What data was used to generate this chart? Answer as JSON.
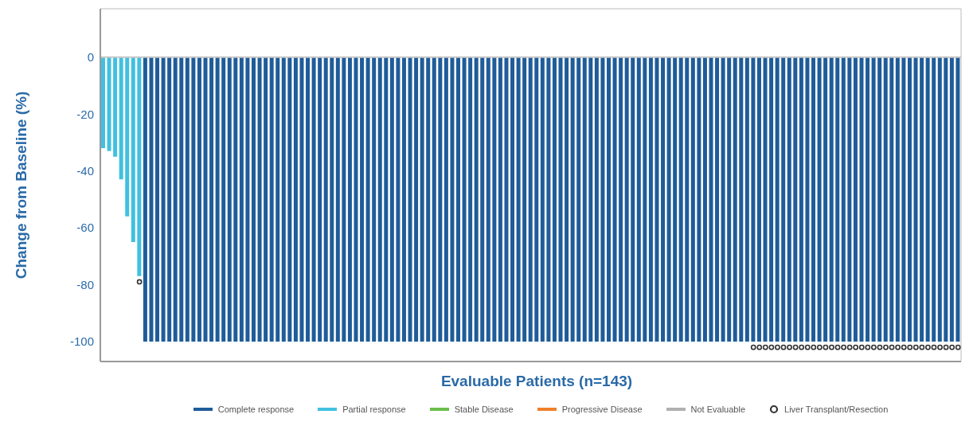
{
  "chart_data": {
    "type": "bar",
    "stacked": true,
    "ylabel": "Change from Baseline (%)",
    "xlabel": "Evaluable Patients (n=143)",
    "categories": [
      null,
      null,
      null,
      null,
      null,
      null,
      null,
      null,
      null,
      null,
      null,
      null,
      null,
      null,
      null,
      null,
      null,
      null,
      null,
      null,
      null,
      null,
      null,
      null,
      null,
      null,
      null,
      null,
      null,
      null,
      null,
      null,
      null,
      null,
      null,
      null,
      null,
      null,
      null,
      null,
      null,
      null,
      null,
      null,
      null,
      null,
      null,
      null,
      null,
      null,
      null,
      null,
      null,
      null,
      null,
      null,
      null,
      null,
      null,
      null,
      null,
      null,
      null,
      null,
      null,
      null,
      null,
      null,
      null,
      null,
      null,
      null,
      null,
      null,
      null,
      null,
      null,
      null,
      null,
      null,
      null,
      null,
      null,
      null,
      null,
      null,
      null,
      null,
      null,
      null,
      null,
      null,
      null,
      null,
      null,
      null,
      null,
      null,
      null,
      null,
      null,
      null,
      null,
      null,
      null,
      null,
      null,
      null,
      null,
      null,
      null,
      null,
      null,
      null,
      null,
      null,
      null,
      null,
      null,
      null,
      null,
      null,
      null,
      null,
      null,
      null,
      null,
      null,
      null,
      null,
      null,
      null,
      null,
      null,
      null,
      null,
      null,
      null,
      null,
      null,
      null,
      null,
      null
    ],
    "series": [
      {
        "name": "Complete response",
        "color": "#1f5c99",
        "values": [
          null,
          null,
          null,
          null,
          null,
          null,
          null,
          -100,
          -100,
          -100,
          -100,
          -100,
          -100,
          -100,
          -100,
          -100,
          -100,
          -100,
          -100,
          -100,
          -100,
          -100,
          -100,
          -100,
          -100,
          -100,
          -100,
          -100,
          -100,
          -100,
          -100,
          -100,
          -100,
          -100,
          -100,
          -100,
          -100,
          -100,
          -100,
          -100,
          -100,
          -100,
          -100,
          -100,
          -100,
          -100,
          -100,
          -100,
          -100,
          -100,
          -100,
          -100,
          -100,
          -100,
          -100,
          -100,
          -100,
          -100,
          -100,
          -100,
          -100,
          -100,
          -100,
          -100,
          -100,
          -100,
          -100,
          -100,
          -100,
          -100,
          -100,
          -100,
          -100,
          -100,
          -100,
          -100,
          -100,
          -100,
          -100,
          -100,
          -100,
          -100,
          -100,
          -100,
          -100,
          -100,
          -100,
          -100,
          -100,
          -100,
          -100,
          -100,
          -100,
          -100,
          -100,
          -100,
          -100,
          -100,
          -100,
          -100,
          -100,
          -100,
          -100,
          -100,
          -100,
          -100,
          -100,
          -100,
          -100,
          -100,
          -100,
          -100,
          -100,
          -100,
          -100,
          -100,
          -100,
          -100,
          -100,
          -100,
          -100,
          -100,
          -100,
          -100,
          -100,
          -100,
          -100,
          -100,
          -100,
          -100,
          -100,
          -100,
          -100,
          -100,
          -100,
          -100,
          -100,
          -100,
          -100,
          -100,
          -100,
          -100,
          -100
        ]
      },
      {
        "name": "Partial response",
        "color": "#41c0e0",
        "values": [
          -32,
          -33,
          -35,
          -43,
          -56,
          -65,
          -77,
          null,
          null,
          null,
          null,
          null,
          null,
          null,
          null,
          null,
          null,
          null,
          null,
          null,
          null,
          null,
          null,
          null,
          null,
          null,
          null,
          null,
          null,
          null,
          null,
          null,
          null,
          null,
          null,
          null,
          null,
          null,
          null,
          null,
          null,
          null,
          null,
          null,
          null,
          null,
          null,
          null,
          null,
          null,
          null,
          null,
          null,
          null,
          null,
          null,
          null,
          null,
          null,
          null,
          null,
          null,
          null,
          null,
          null,
          null,
          null,
          null,
          null,
          null,
          null,
          null,
          null,
          null,
          null,
          null,
          null,
          null,
          null,
          null,
          null,
          null,
          null,
          null,
          null,
          null,
          null,
          null,
          null,
          null,
          null,
          null,
          null,
          null,
          null,
          null,
          null,
          null,
          null,
          null,
          null,
          null,
          null,
          null,
          null,
          null,
          null,
          null,
          null,
          null,
          null,
          null,
          null,
          null,
          null,
          null,
          null,
          null,
          null,
          null,
          null,
          null,
          null,
          null,
          null,
          null,
          null,
          null,
          null,
          null,
          null,
          null,
          null,
          null,
          null,
          null,
          null,
          null,
          null,
          null,
          null,
          null,
          null
        ]
      },
      {
        "name": "Stable Disease",
        "color": "#6abf4b",
        "values": [
          null,
          null,
          null,
          null,
          null,
          null,
          null,
          null,
          null,
          null,
          null,
          null,
          null,
          null,
          null,
          null,
          null,
          null,
          null,
          null,
          null,
          null,
          null,
          null,
          null,
          null,
          null,
          null,
          null,
          null,
          null,
          null,
          null,
          null,
          null,
          null,
          null,
          null,
          null,
          null,
          null,
          null,
          null,
          null,
          null,
          null,
          null,
          null,
          null,
          null,
          null,
          null,
          null,
          null,
          null,
          null,
          null,
          null,
          null,
          null,
          null,
          null,
          null,
          null,
          null,
          null,
          null,
          null,
          null,
          null,
          null,
          null,
          null,
          null,
          null,
          null,
          null,
          null,
          null,
          null,
          null,
          null,
          null,
          null,
          null,
          null,
          null,
          null,
          null,
          null,
          null,
          null,
          null,
          null,
          null,
          null,
          null,
          null,
          null,
          null,
          null,
          null,
          null,
          null,
          null,
          null,
          null,
          null,
          null,
          null,
          null,
          null,
          null,
          null,
          null,
          null,
          null,
          null,
          null,
          null,
          null,
          null,
          null,
          null,
          null,
          null,
          null,
          null,
          null,
          null,
          null,
          null,
          null,
          null,
          null,
          null,
          null,
          null,
          null,
          null,
          null,
          null,
          null
        ]
      },
      {
        "name": "Progressive Disease",
        "color": "#f0802a",
        "values": [
          null,
          null,
          null,
          null,
          null,
          null,
          null,
          null,
          null,
          null,
          null,
          null,
          null,
          null,
          null,
          null,
          null,
          null,
          null,
          null,
          null,
          null,
          null,
          null,
          null,
          null,
          null,
          null,
          null,
          null,
          null,
          null,
          null,
          null,
          null,
          null,
          null,
          null,
          null,
          null,
          null,
          null,
          null,
          null,
          null,
          null,
          null,
          null,
          null,
          null,
          null,
          null,
          null,
          null,
          null,
          null,
          null,
          null,
          null,
          null,
          null,
          null,
          null,
          null,
          null,
          null,
          null,
          null,
          null,
          null,
          null,
          null,
          null,
          null,
          null,
          null,
          null,
          null,
          null,
          null,
          null,
          null,
          null,
          null,
          null,
          null,
          null,
          null,
          null,
          null,
          null,
          null,
          null,
          null,
          null,
          null,
          null,
          null,
          null,
          null,
          null,
          null,
          null,
          null,
          null,
          null,
          null,
          null,
          null,
          null,
          null,
          null,
          null,
          null,
          null,
          null,
          null,
          null,
          null,
          null,
          null,
          null,
          null,
          null,
          null,
          null,
          null,
          null,
          null,
          null,
          null,
          null,
          null,
          null,
          null,
          null,
          null,
          null,
          null,
          null,
          null,
          null,
          null
        ]
      },
      {
        "name": "Not Evaluable",
        "color": "#b0b0b0",
        "values": [
          null,
          null,
          null,
          null,
          null,
          null,
          null,
          null,
          null,
          null,
          null,
          null,
          null,
          null,
          null,
          null,
          null,
          null,
          null,
          null,
          null,
          null,
          null,
          null,
          null,
          null,
          null,
          null,
          null,
          null,
          null,
          null,
          null,
          null,
          null,
          null,
          null,
          null,
          null,
          null,
          null,
          null,
          null,
          null,
          null,
          null,
          null,
          null,
          null,
          null,
          null,
          null,
          null,
          null,
          null,
          null,
          null,
          null,
          null,
          null,
          null,
          null,
          null,
          null,
          null,
          null,
          null,
          null,
          null,
          null,
          null,
          null,
          null,
          null,
          null,
          null,
          null,
          null,
          null,
          null,
          null,
          null,
          null,
          null,
          null,
          null,
          null,
          null,
          null,
          null,
          null,
          null,
          null,
          null,
          null,
          null,
          null,
          null,
          null,
          null,
          null,
          null,
          null,
          null,
          null,
          null,
          null,
          null,
          null,
          null,
          null,
          null,
          null,
          null,
          null,
          null,
          null,
          null,
          null,
          null,
          null,
          null,
          null,
          null,
          null,
          null,
          null,
          null,
          null,
          null,
          null,
          null,
          null,
          null,
          null,
          null,
          null,
          null,
          null,
          null,
          null,
          null,
          null
        ]
      },
      {
        "name": "Liver Transplant/Resection",
        "type": "scatter",
        "marker": "circle",
        "color": "#333333",
        "values": [
          null,
          null,
          null,
          null,
          null,
          null,
          -79,
          null,
          null,
          null,
          null,
          null,
          null,
          null,
          null,
          null,
          null,
          null,
          null,
          null,
          null,
          null,
          null,
          null,
          null,
          null,
          null,
          null,
          null,
          null,
          null,
          null,
          null,
          null,
          null,
          null,
          null,
          null,
          null,
          null,
          null,
          null,
          null,
          null,
          null,
          null,
          null,
          null,
          null,
          null,
          null,
          null,
          null,
          null,
          null,
          null,
          null,
          null,
          null,
          null,
          null,
          null,
          null,
          null,
          null,
          null,
          null,
          null,
          null,
          null,
          null,
          null,
          null,
          null,
          null,
          null,
          null,
          null,
          null,
          null,
          null,
          null,
          null,
          null,
          null,
          null,
          null,
          null,
          null,
          null,
          null,
          null,
          null,
          null,
          null,
          null,
          null,
          null,
          null,
          null,
          null,
          null,
          null,
          null,
          null,
          null,
          null,
          null,
          -102,
          -102,
          -102,
          -102,
          -102,
          -102,
          -102,
          -102,
          -102,
          -102,
          -102,
          -102,
          -102,
          -102,
          -102,
          -102,
          -102,
          -102,
          -102,
          -102,
          -102,
          -102,
          -102,
          -102,
          -102,
          -102,
          -102,
          -102,
          -102,
          -102,
          -102,
          -102,
          -102,
          -102,
          -102
        ]
      }
    ],
    "ylim": [
      -107,
      17
    ],
    "yticks": [
      -100,
      -80,
      -60,
      -40,
      -20,
      0
    ],
    "ref_lines": [
      {
        "axis": "y",
        "value": 0,
        "color": "#c8c8c8"
      }
    ],
    "grid": false,
    "legend": "bottom"
  }
}
